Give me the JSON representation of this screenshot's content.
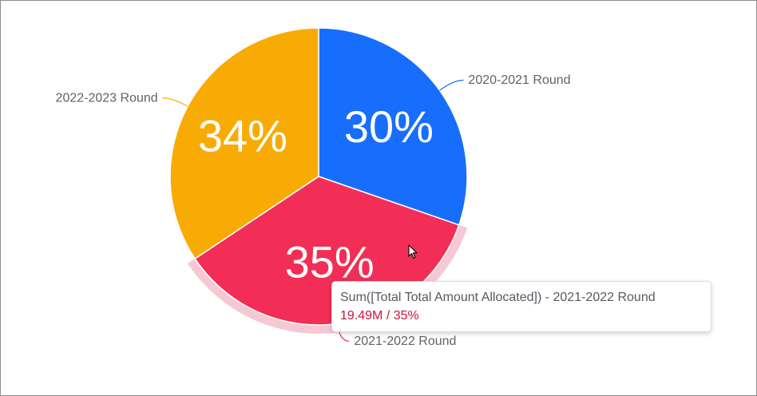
{
  "chart_data": {
    "type": "pie",
    "categories": [
      "2020-2021 Round",
      "2021-2022 Round",
      "2022-2023 Round"
    ],
    "values": [
      30,
      35,
      34
    ],
    "percent_labels": [
      "30%",
      "35%",
      "34%"
    ],
    "colors": [
      "#176efd",
      "#f22e56",
      "#f9ab05"
    ],
    "hover_halo_color": "#f6c8d3",
    "label_text_color": "#5f6368",
    "highlighted_category": "2021-2022 Round",
    "legend": "none (direct labels with leader lines)"
  },
  "tooltip": {
    "line1": "Sum([Total Total Amount Allocated])  -  2021-2022 Round",
    "line2": "19.49M / 35%"
  },
  "cursor": "arrow-cursor-icon"
}
